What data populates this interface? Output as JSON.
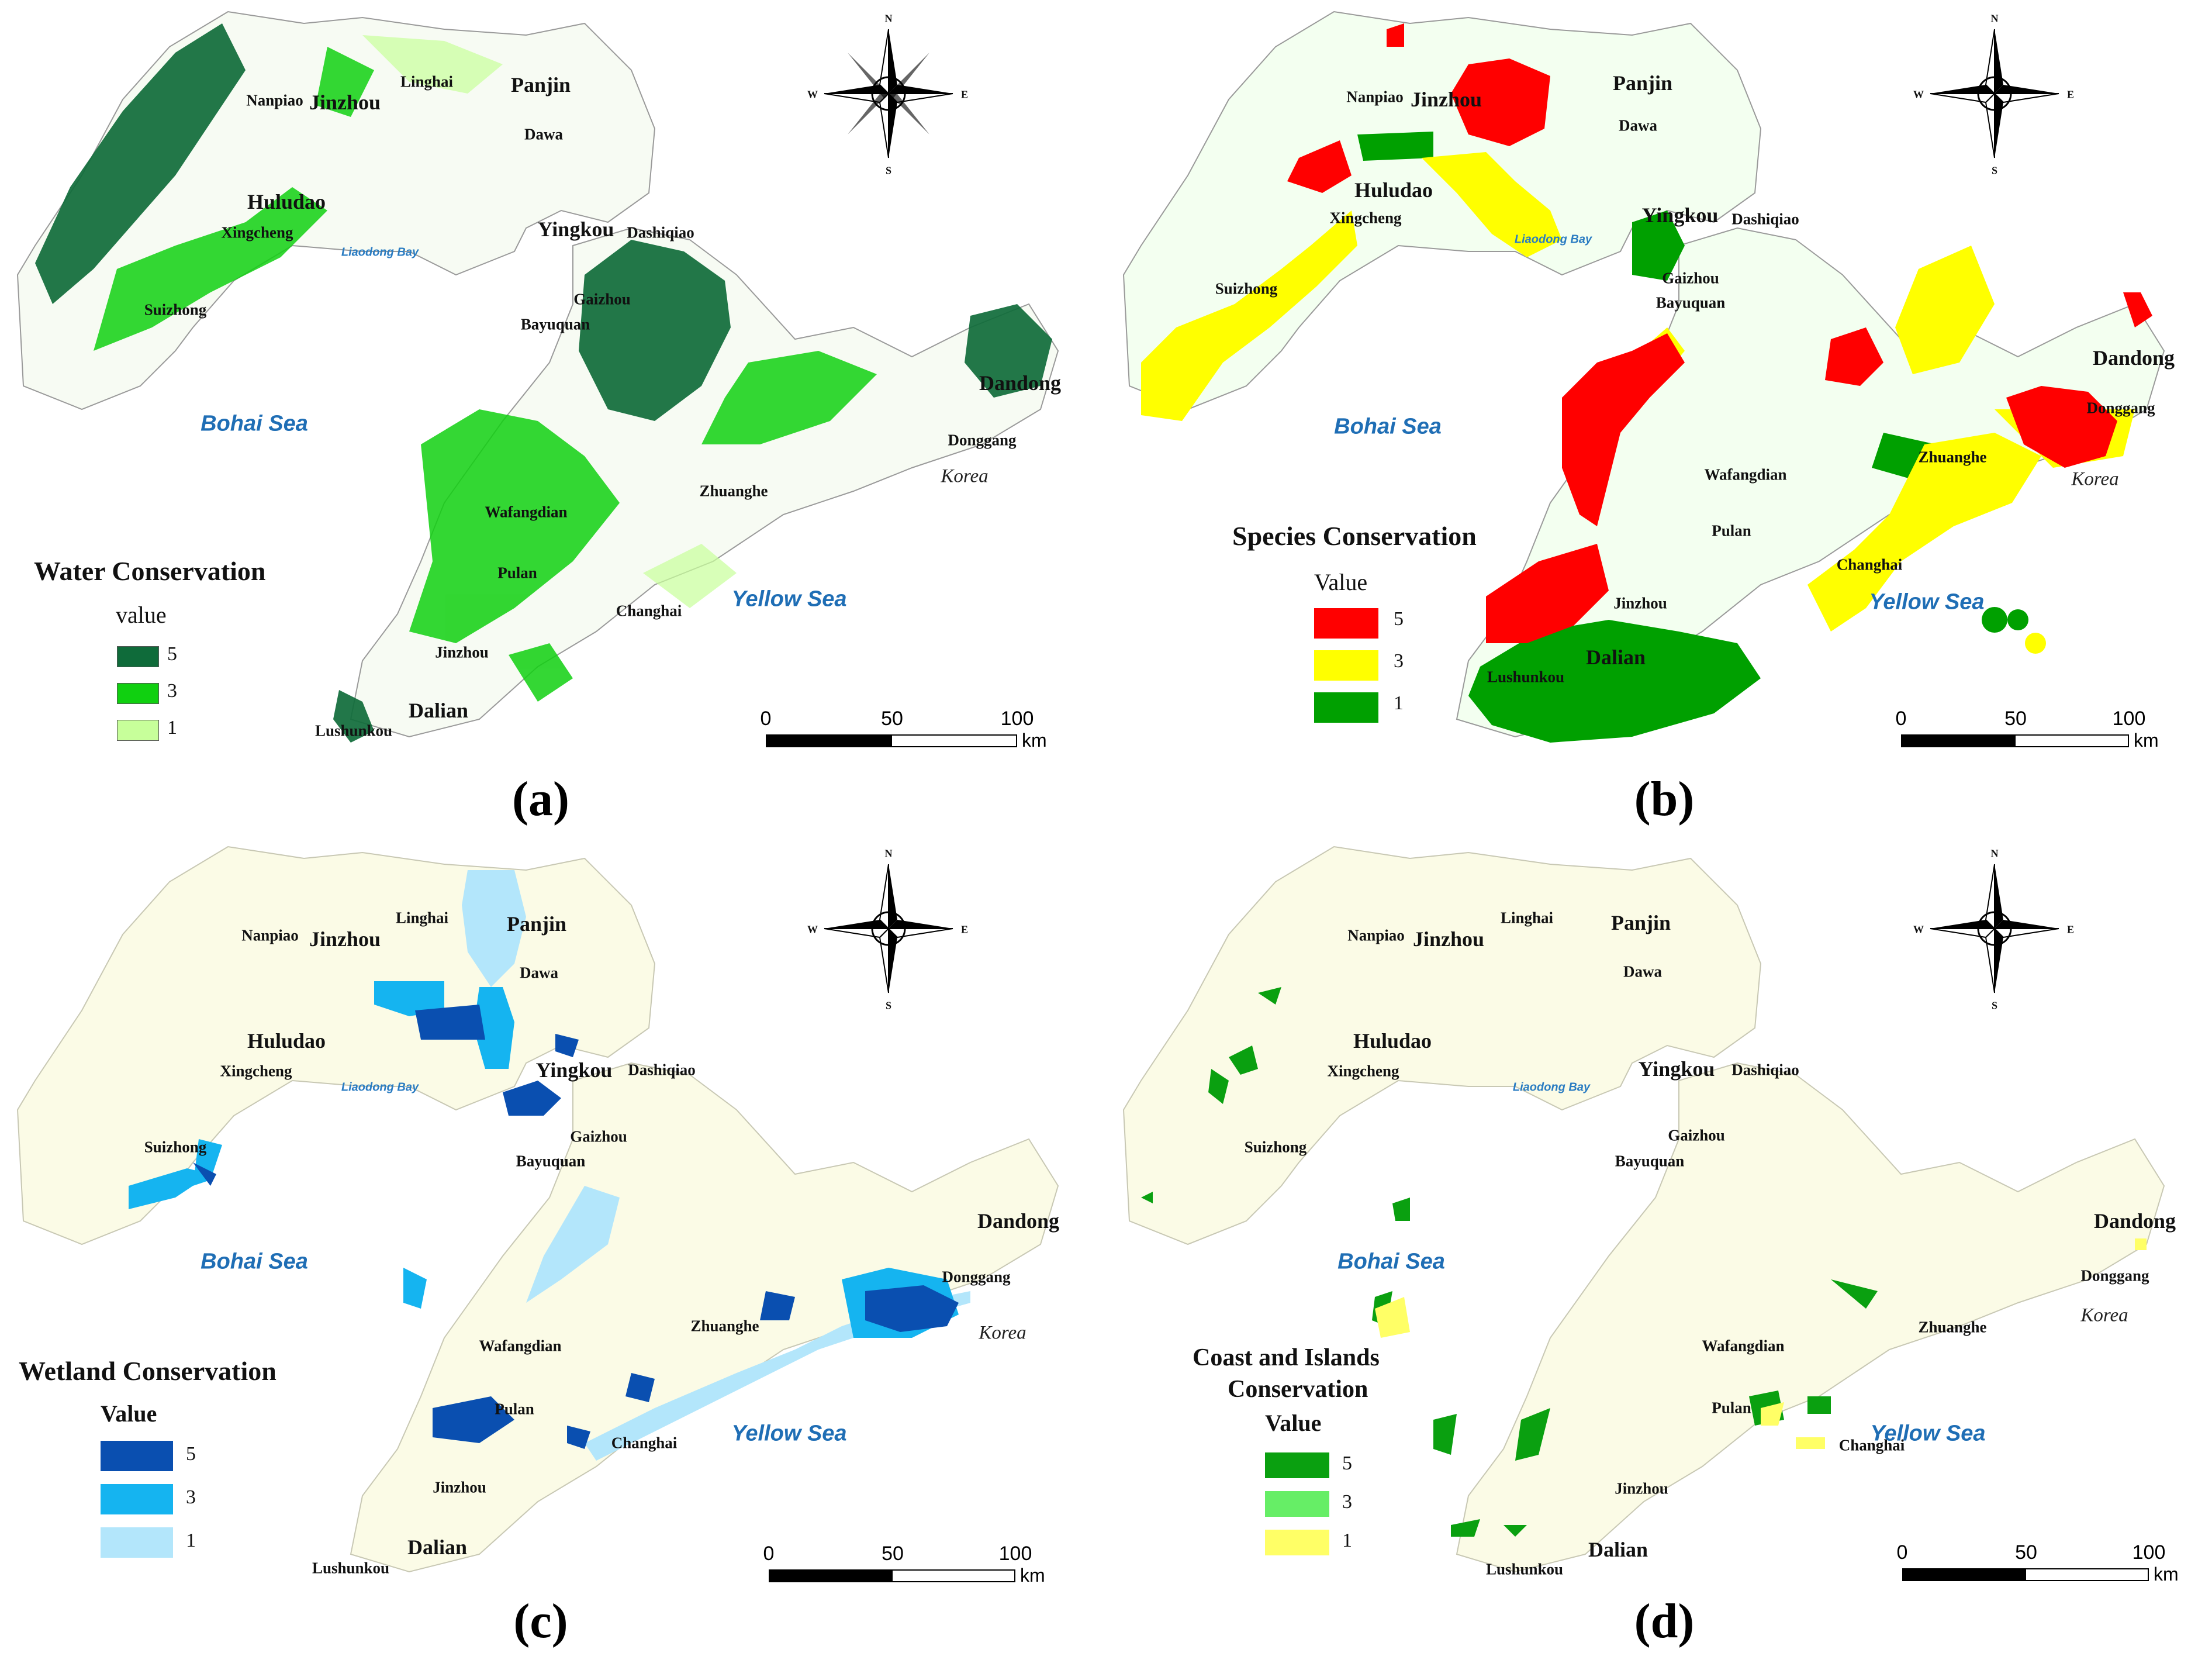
{
  "panels": [
    {
      "id": "a",
      "label": "(a)",
      "legend_title": "Water Conservation",
      "legend_value_label": "value",
      "legend": [
        {
          "value": "5",
          "color": "#0f6b3a"
        },
        {
          "value": "3",
          "color": "#10d010"
        },
        {
          "value": "1",
          "color": "#c7ff9a"
        }
      ],
      "places": [
        "Nanpiao",
        "Jinzhou",
        "Linghai",
        "Panjin",
        "Dawa",
        "Huludao",
        "Xingcheng",
        "Yingkou",
        "Dashiqiao",
        "Suizhong",
        "Gaizhou",
        "Bayuquan",
        "Dandong",
        "Donggang",
        "Wafangdian",
        "Zhuanghe",
        "Pulan",
        "Changhai",
        "Jinzhou",
        "Dalian",
        "Lushunkou"
      ],
      "seas": {
        "bohai": "Bohai Sea",
        "yellow": "Yellow Sea",
        "bay": "Liaodong Bay",
        "korea": "Korea"
      }
    },
    {
      "id": "b",
      "label": "(b)",
      "legend_title": "Species Conservation",
      "legend_value_label": "Value",
      "legend": [
        {
          "value": "5",
          "color": "#ff0000"
        },
        {
          "value": "3",
          "color": "#ffff00"
        },
        {
          "value": "1",
          "color": "#00a000"
        }
      ],
      "places": [
        "Nanpiao",
        "Jinzhou",
        "Panjin",
        "Dawa",
        "Huludao",
        "Xingcheng",
        "Yingkou",
        "Dashiqiao",
        "Gaizhou",
        "Suizhong",
        "Bayuquan",
        "Dandong",
        "Donggang",
        "Wafangdian",
        "Zhuanghe",
        "Pulan",
        "Changhai",
        "Jinzhou",
        "Dalian",
        "Lushunkou"
      ],
      "seas": {
        "bohai": "Bohai Sea",
        "yellow": "Yellow Sea",
        "bay": "Liaodong Bay",
        "korea": "Korea"
      }
    },
    {
      "id": "c",
      "label": "(c)",
      "legend_title": "Wetland Conservation",
      "legend_value_label": "Value",
      "legend": [
        {
          "value": "5",
          "color": "#0a4fb0"
        },
        {
          "value": "3",
          "color": "#15b4f0"
        },
        {
          "value": "1",
          "color": "#b3e6fb"
        }
      ],
      "places": [
        "Nanpiao",
        "Jinzhou",
        "Linghai",
        "Panjin",
        "Dawa",
        "Huludao",
        "Xingcheng",
        "Yingkou",
        "Dashiqiao",
        "Suizhong",
        "Gaizhou",
        "Bayuquan",
        "Dandong",
        "Donggang",
        "Wafangdian",
        "Zhuanghe",
        "Pulan",
        "Changhai",
        "Jinzhou",
        "Dalian",
        "Lushunkou"
      ],
      "seas": {
        "bohai": "Bohai Sea",
        "yellow": "Yellow Sea",
        "bay": "Liaodong Bay",
        "korea": "Korea"
      }
    },
    {
      "id": "d",
      "label": "(d)",
      "legend_title": "Coast and Islands",
      "legend_title_2": "Conservation",
      "legend_value_label": "Value",
      "legend": [
        {
          "value": "5",
          "color": "#0aa010"
        },
        {
          "value": "3",
          "color": "#66ee66"
        },
        {
          "value": "1",
          "color": "#ffff66"
        }
      ],
      "places": [
        "Nanpiao",
        "Jinzhou",
        "Linghai",
        "Panjin",
        "Dawa",
        "Huludao",
        "Xingcheng",
        "Yingkou",
        "Dashiqiao",
        "Gaizhou",
        "Suizhong",
        "Bayuquan",
        "Dandong",
        "Donggang",
        "Wafangdian",
        "Zhuanghe",
        "Pulan",
        "Changhai",
        "Jinzhou",
        "Dalian",
        "Lushunkou"
      ],
      "seas": {
        "bohai": "Bohai Sea",
        "yellow": "Yellow Sea",
        "bay": "Liaodong Bay",
        "korea": "Korea"
      }
    }
  ],
  "scalebar": {
    "ticks": [
      "0",
      "50",
      "100"
    ],
    "unit": "km"
  },
  "compass": {
    "n": "N",
    "s": "S",
    "e": "E",
    "w": "W"
  }
}
